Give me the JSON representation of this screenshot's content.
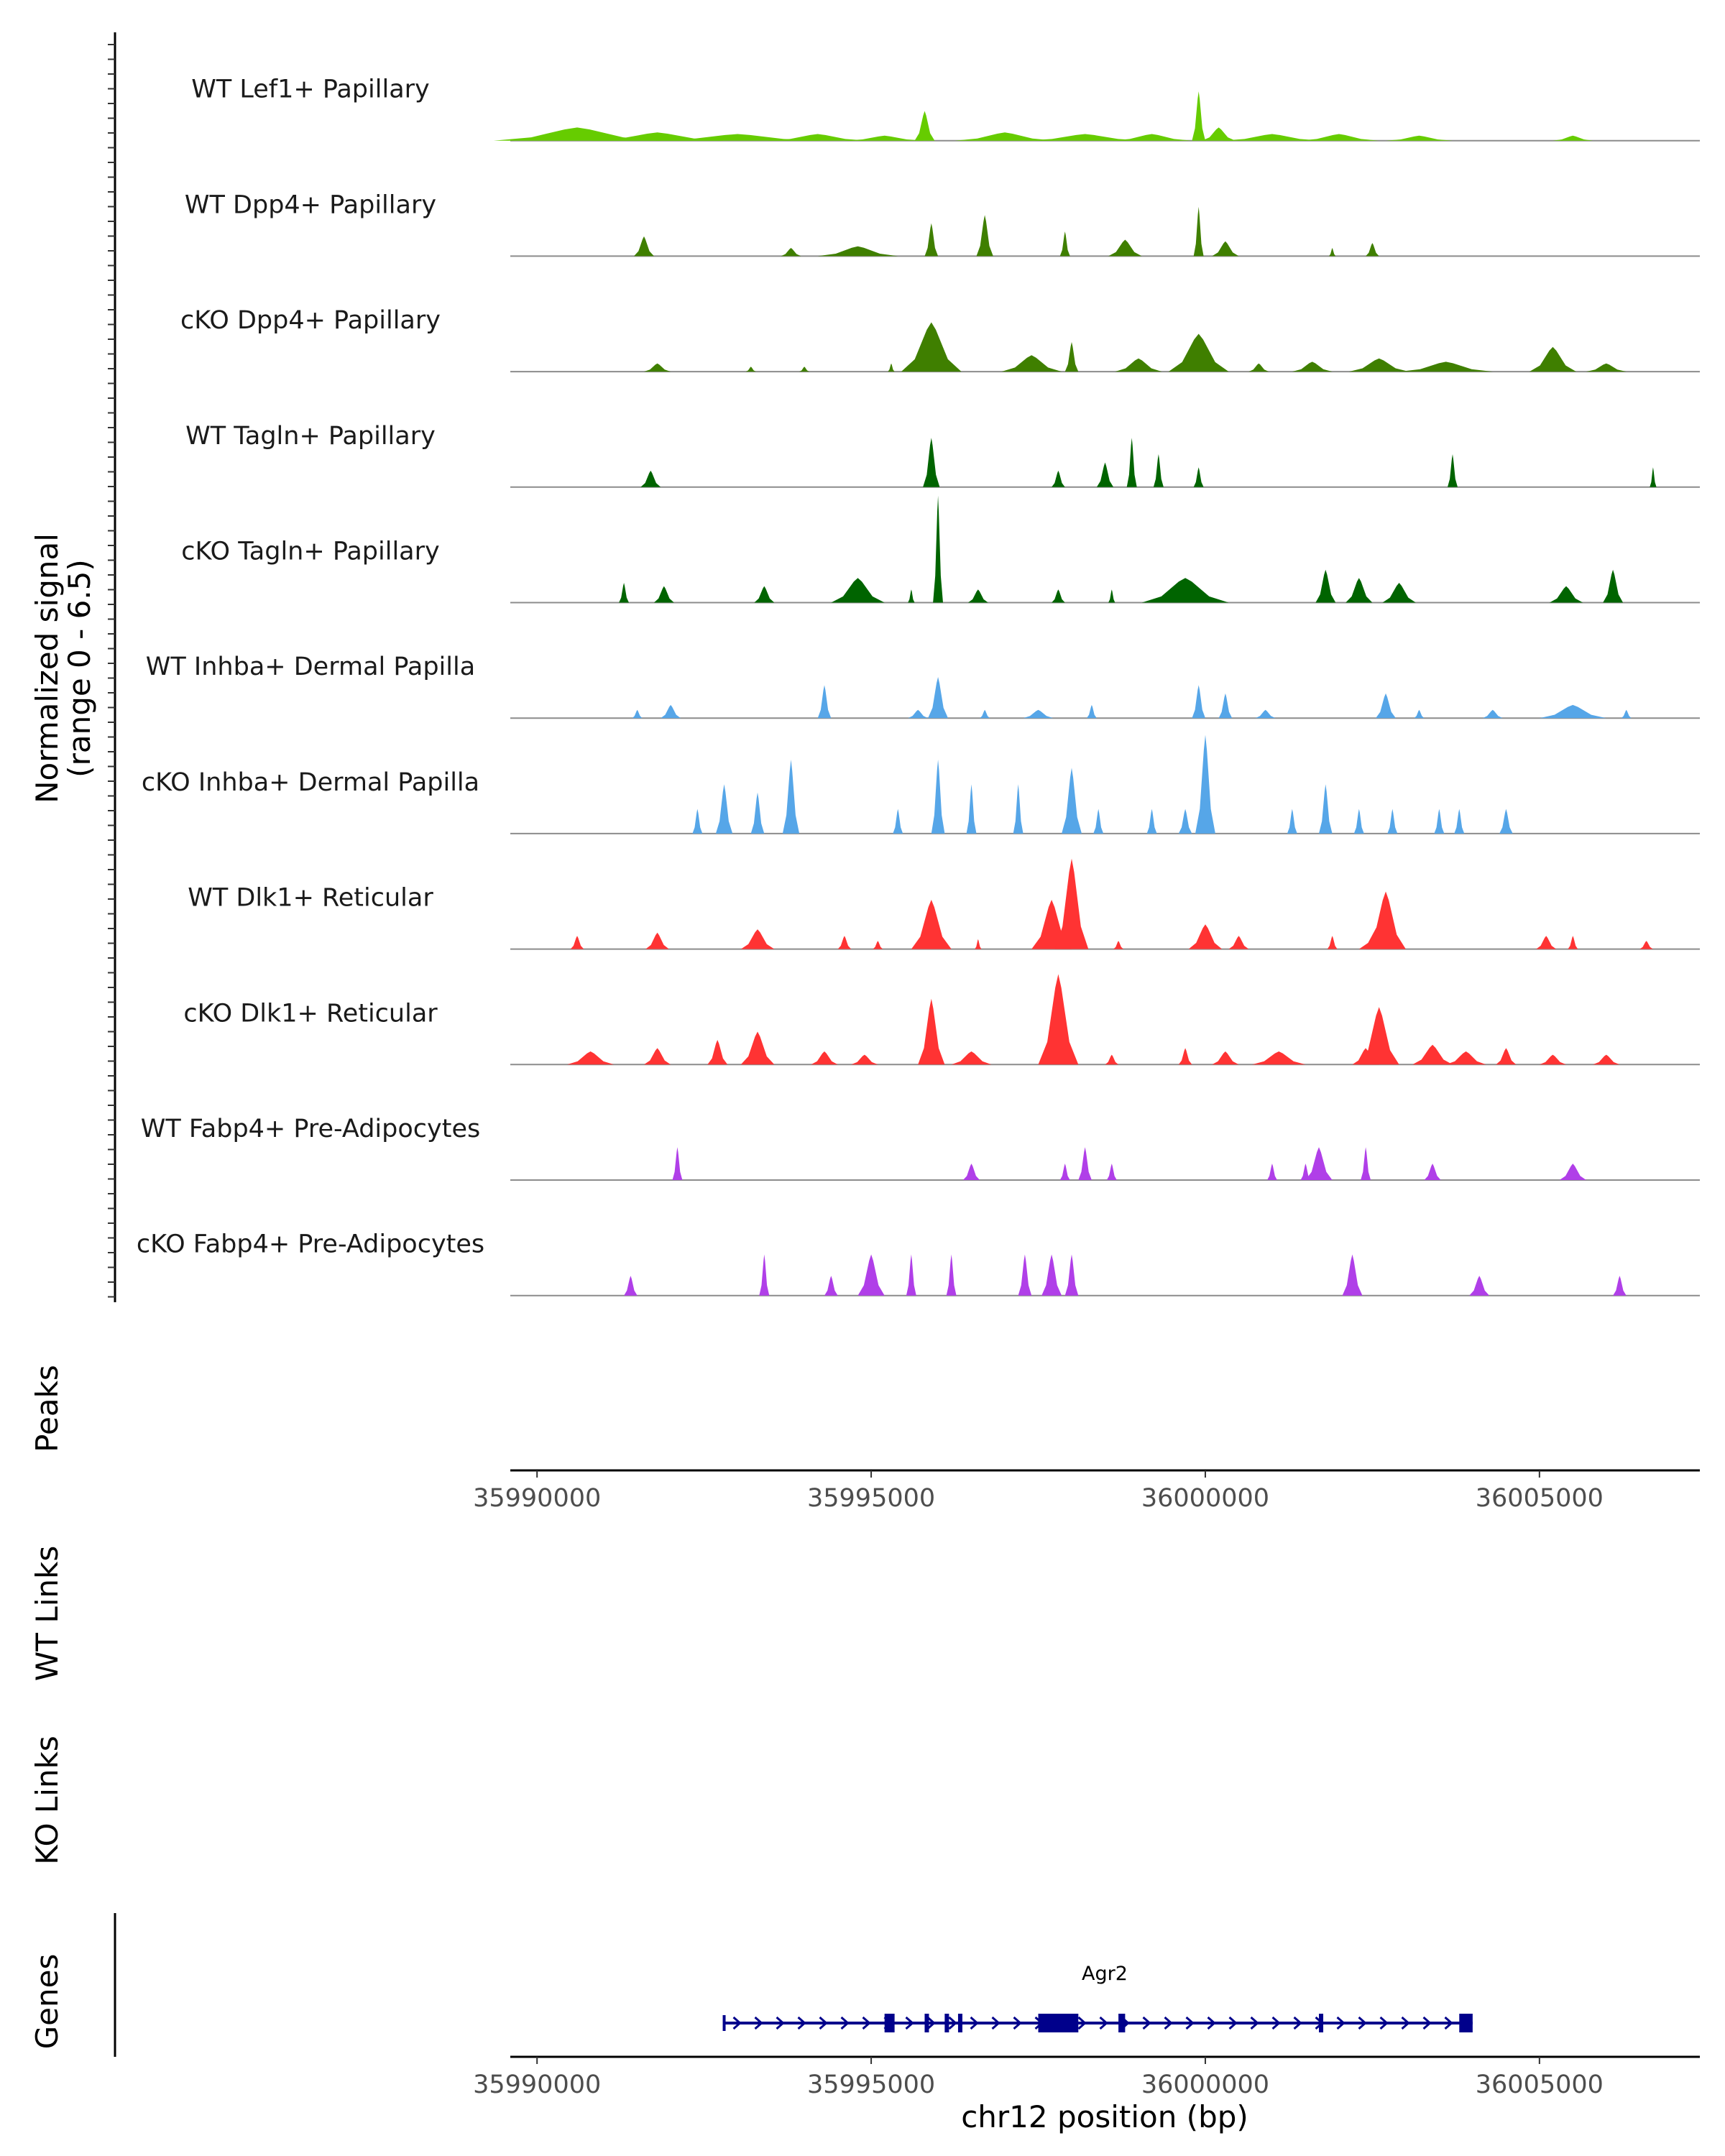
{
  "chart_data": {
    "type": "area",
    "title": "",
    "region": {
      "chromosome": "chr12",
      "start": 35989600,
      "end": 36007400
    },
    "coverage_panel": {
      "ylabel_line1": "Normalized signal",
      "ylabel_line2": "(range 0 - 6.5)",
      "ylim": [
        0,
        6.5
      ]
    },
    "tracks": [
      {
        "name": "WT Lef1+ Papillary",
        "color": "#66CC00",
        "peaks": [
          [
            35990600,
            0.8,
            2500
          ],
          [
            35991800,
            0.5,
            2000
          ],
          [
            35993000,
            0.4,
            2500
          ],
          [
            35994200,
            0.4,
            1500
          ],
          [
            35995200,
            0.3,
            1200
          ],
          [
            35995800,
            1.8,
            300
          ],
          [
            35997000,
            0.5,
            1500
          ],
          [
            35998200,
            0.4,
            1800
          ],
          [
            35999200,
            0.4,
            1200
          ],
          [
            35999900,
            3.0,
            200
          ],
          [
            36000200,
            0.8,
            500
          ],
          [
            36001000,
            0.4,
            1500
          ],
          [
            36002000,
            0.4,
            1200
          ],
          [
            36003200,
            0.3,
            1000
          ],
          [
            36005500,
            0.3,
            600
          ]
        ]
      },
      {
        "name": "WT Dpp4+ Papillary",
        "color": "#3F7F00",
        "peaks": [
          [
            35991600,
            1.2,
            300
          ],
          [
            35993800,
            0.5,
            300
          ],
          [
            35994800,
            0.6,
            1200
          ],
          [
            35995900,
            2.0,
            200
          ],
          [
            35996700,
            2.5,
            250
          ],
          [
            35997900,
            1.5,
            150
          ],
          [
            35998800,
            1.0,
            500
          ],
          [
            35999900,
            3.0,
            150
          ],
          [
            36000300,
            0.9,
            400
          ],
          [
            36001900,
            0.5,
            100
          ],
          [
            36002500,
            0.8,
            200
          ]
        ]
      },
      {
        "name": "cKO Dpp4+ Papillary",
        "color": "#3F7F00",
        "peaks": [
          [
            35991800,
            0.5,
            400
          ],
          [
            35993200,
            0.3,
            150
          ],
          [
            35994000,
            0.3,
            150
          ],
          [
            35995300,
            0.5,
            100
          ],
          [
            35995900,
            3.0,
            900
          ],
          [
            35997400,
            1.0,
            900
          ],
          [
            35998000,
            1.8,
            200
          ],
          [
            35999000,
            0.8,
            700
          ],
          [
            35999900,
            2.3,
            900
          ],
          [
            36000800,
            0.5,
            300
          ],
          [
            36001600,
            0.6,
            600
          ],
          [
            36002600,
            0.8,
            900
          ],
          [
            36003600,
            0.6,
            1400
          ],
          [
            36005200,
            1.5,
            700
          ],
          [
            36006000,
            0.5,
            600
          ]
        ]
      },
      {
        "name": "WT Tagln+ Papillary",
        "color": "#006400",
        "peaks": [
          [
            35991700,
            1.0,
            300
          ],
          [
            35995900,
            3.0,
            250
          ],
          [
            35997800,
            1.0,
            200
          ],
          [
            35998500,
            1.5,
            250
          ],
          [
            35998900,
            3.0,
            150
          ],
          [
            35999300,
            2.0,
            150
          ],
          [
            35999900,
            1.2,
            150
          ],
          [
            36003700,
            2.0,
            150
          ],
          [
            36006700,
            1.2,
            100
          ]
        ]
      },
      {
        "name": "cKO Tagln+ Papillary",
        "color": "#006400",
        "peaks": [
          [
            35991300,
            1.2,
            150
          ],
          [
            35991900,
            1.0,
            300
          ],
          [
            35993400,
            1.0,
            300
          ],
          [
            35994800,
            1.5,
            800
          ],
          [
            35995600,
            0.8,
            100
          ],
          [
            35996000,
            6.5,
            150
          ],
          [
            35996600,
            0.8,
            300
          ],
          [
            35997800,
            0.8,
            200
          ],
          [
            35998600,
            0.8,
            100
          ],
          [
            35999700,
            1.5,
            1300
          ],
          [
            36001800,
            2.0,
            300
          ],
          [
            36002300,
            1.5,
            400
          ],
          [
            36002900,
            1.2,
            500
          ],
          [
            36005400,
            1.0,
            500
          ],
          [
            36006100,
            2.0,
            300
          ]
        ]
      },
      {
        "name": "WT Inhba+ Dermal Papilla",
        "color": "#56A6E8",
        "peaks": [
          [
            35991500,
            0.5,
            150
          ],
          [
            35992000,
            0.8,
            300
          ],
          [
            35994300,
            2.0,
            200
          ],
          [
            35995700,
            0.5,
            300
          ],
          [
            35996000,
            2.5,
            300
          ],
          [
            35996700,
            0.5,
            150
          ],
          [
            35997500,
            0.5,
            450
          ],
          [
            35998300,
            0.8,
            150
          ],
          [
            35999900,
            2.0,
            200
          ],
          [
            36000300,
            1.5,
            200
          ],
          [
            36000900,
            0.5,
            300
          ],
          [
            36002700,
            1.5,
            300
          ],
          [
            36003200,
            0.5,
            150
          ],
          [
            36004300,
            0.5,
            300
          ],
          [
            36005500,
            0.8,
            1000
          ],
          [
            36006300,
            0.5,
            150
          ]
        ]
      },
      {
        "name": "cKO Inhba+ Dermal Papilla",
        "color": "#56A6E8",
        "peaks": [
          [
            35992400,
            1.5,
            150
          ],
          [
            35992800,
            3.0,
            250
          ],
          [
            35993300,
            2.5,
            200
          ],
          [
            35993800,
            4.5,
            250
          ],
          [
            35995400,
            1.5,
            150
          ],
          [
            35996000,
            4.5,
            200
          ],
          [
            35996500,
            3.0,
            150
          ],
          [
            35997200,
            3.0,
            150
          ],
          [
            35998000,
            4.0,
            300
          ],
          [
            35998400,
            1.5,
            150
          ],
          [
            35999200,
            1.5,
            150
          ],
          [
            35999700,
            1.5,
            200
          ],
          [
            36000000,
            6.0,
            300
          ],
          [
            36001300,
            1.5,
            150
          ],
          [
            36001800,
            3.0,
            200
          ],
          [
            36002300,
            1.5,
            150
          ],
          [
            36002800,
            1.5,
            150
          ],
          [
            36003500,
            1.5,
            150
          ],
          [
            36003800,
            1.5,
            150
          ],
          [
            36004500,
            1.5,
            200
          ]
        ]
      },
      {
        "name": "WT Dlk1+ Reticular",
        "color": "#FF3333",
        "peaks": [
          [
            35990600,
            0.8,
            200
          ],
          [
            35991800,
            1.0,
            350
          ],
          [
            35993300,
            1.2,
            500
          ],
          [
            35994600,
            0.8,
            200
          ],
          [
            35995100,
            0.5,
            150
          ],
          [
            35995900,
            3.0,
            600
          ],
          [
            35996600,
            0.6,
            100
          ],
          [
            35997700,
            3.0,
            600
          ],
          [
            35998000,
            5.5,
            500
          ],
          [
            35998700,
            0.5,
            150
          ],
          [
            36000000,
            1.5,
            500
          ],
          [
            36000500,
            0.8,
            300
          ],
          [
            36001900,
            0.8,
            150
          ],
          [
            36002600,
            1.5,
            600
          ],
          [
            36002700,
            3.5,
            600
          ],
          [
            36005100,
            0.8,
            300
          ],
          [
            36005500,
            0.8,
            150
          ],
          [
            36006600,
            0.5,
            200
          ]
        ]
      },
      {
        "name": "cKO Dlk1+ Reticular",
        "color": "#FF3333",
        "peaks": [
          [
            35990800,
            0.8,
            700
          ],
          [
            35991800,
            1.0,
            400
          ],
          [
            35992700,
            1.5,
            300
          ],
          [
            35993300,
            2.0,
            500
          ],
          [
            35994300,
            0.8,
            400
          ],
          [
            35994900,
            0.6,
            400
          ],
          [
            35995900,
            4.0,
            400
          ],
          [
            35996500,
            0.8,
            600
          ],
          [
            35997800,
            5.5,
            600
          ],
          [
            35998600,
            0.6,
            200
          ],
          [
            35999700,
            1.0,
            200
          ],
          [
            36000300,
            0.8,
            400
          ],
          [
            36001100,
            0.8,
            800
          ],
          [
            36002400,
            1.0,
            400
          ],
          [
            36002600,
            3.5,
            600
          ],
          [
            36003400,
            1.2,
            600
          ],
          [
            36003900,
            0.8,
            600
          ],
          [
            36004500,
            1.0,
            300
          ],
          [
            36005200,
            0.6,
            400
          ],
          [
            36006000,
            0.6,
            400
          ]
        ]
      },
      {
        "name": "WT Fabp4+ Pre-Adipocytes",
        "color": "#B03FE8",
        "peaks": [
          [
            35992100,
            2.0,
            150
          ],
          [
            35996500,
            1.0,
            250
          ],
          [
            35997900,
            1.0,
            150
          ],
          [
            35998200,
            2.0,
            200
          ],
          [
            35998600,
            1.0,
            150
          ],
          [
            36001000,
            1.0,
            150
          ],
          [
            36001500,
            1.0,
            150
          ],
          [
            36001700,
            2.0,
            400
          ],
          [
            36002400,
            2.0,
            150
          ],
          [
            36003400,
            1.0,
            250
          ],
          [
            36005500,
            1.0,
            400
          ]
        ]
      },
      {
        "name": "cKO Fabp4+ Pre-Adipocytes",
        "color": "#B03FE8",
        "peaks": [
          [
            35991400,
            1.2,
            200
          ],
          [
            35993400,
            2.5,
            150
          ],
          [
            35994400,
            1.2,
            200
          ],
          [
            35995000,
            2.5,
            400
          ],
          [
            35995600,
            2.5,
            150
          ],
          [
            35996200,
            2.5,
            150
          ],
          [
            35997300,
            2.5,
            200
          ],
          [
            35997700,
            2.5,
            300
          ],
          [
            35998000,
            2.5,
            200
          ],
          [
            36002200,
            2.5,
            300
          ],
          [
            36004100,
            1.2,
            300
          ],
          [
            36006200,
            1.2,
            200
          ]
        ]
      }
    ],
    "empty_panels": [
      "Peaks",
      "WT Links",
      "KO Links"
    ],
    "genes_panel": {
      "label": "Genes",
      "gene": {
        "name": "Agr2",
        "start": 35992800,
        "end": 36004000,
        "strand": "+",
        "color": "#00008B"
      },
      "exons": [
        [
          35995200,
          35995350
        ],
        [
          35995800,
          35995850
        ],
        [
          35996100,
          35996150
        ],
        [
          35996300,
          35996350
        ],
        [
          35997500,
          35998100
        ],
        [
          35998700,
          35998800
        ],
        [
          36001700,
          36001750
        ],
        [
          36003800,
          36004000
        ]
      ]
    },
    "xaxis": {
      "ticks": [
        35990000,
        35995000,
        36000000,
        36005000
      ],
      "tick_labels": [
        "35990000",
        "35995000",
        "36000000",
        "36005000"
      ],
      "xlabel": "chr12 position (bp)"
    },
    "grid": false
  }
}
